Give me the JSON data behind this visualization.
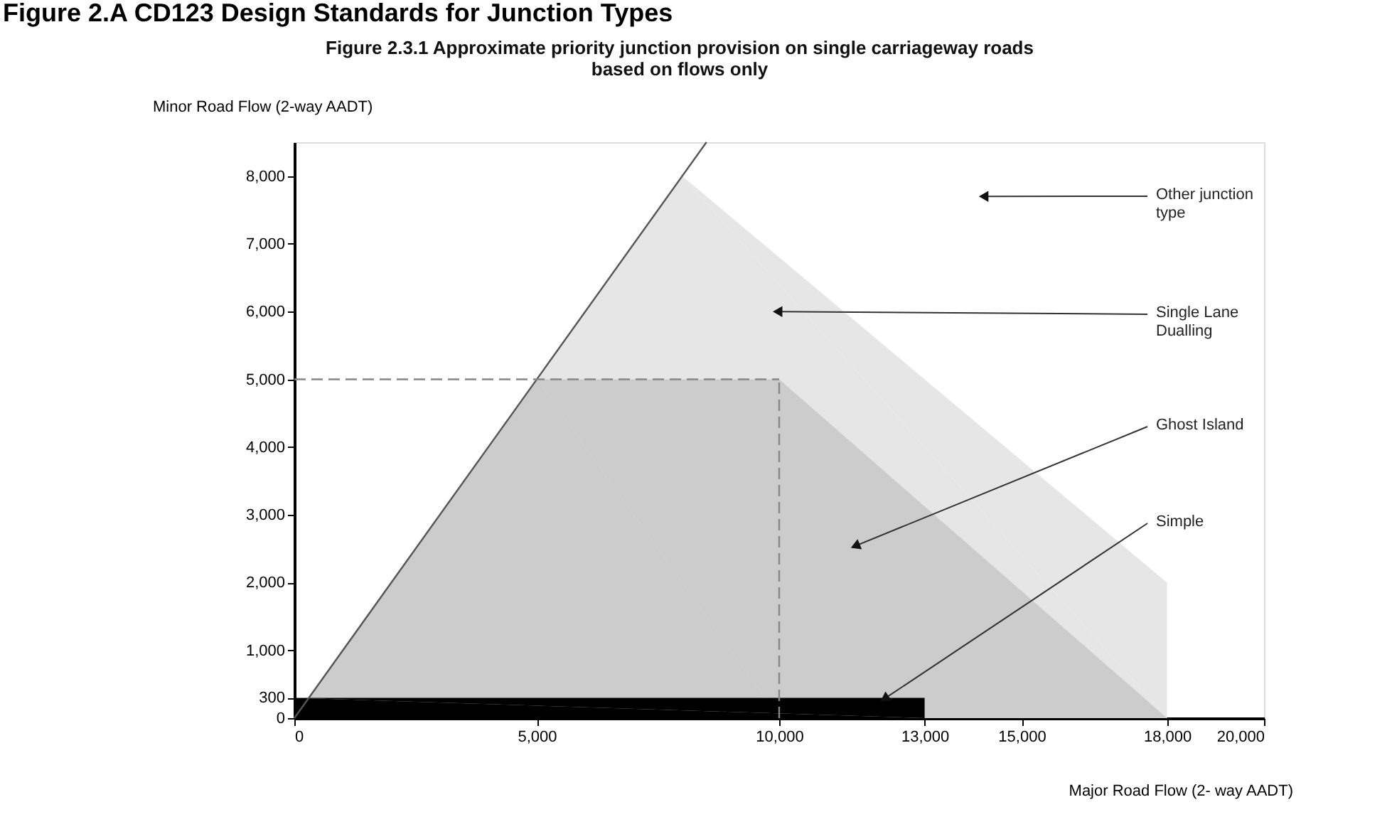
{
  "chart_data": {
    "type": "area",
    "title": "Figure 2.A    CD123 Design Standards for Junction Types",
    "subtitle": "Figure 2.3.1 Approximate priority junction provision on single carriageway roads\nbased on flows only",
    "xlabel": "Major Road Flow (2- way AADT)",
    "ylabel": "Minor Road Flow (2-way AADT)",
    "series": [
      {
        "color": "#e6e6e6",
        "x": [
          0,
          8000,
          18000,
          18000
        ],
        "values": [
          0,
          8000,
          2000,
          0
        ]
      },
      {
        "color": "#cccccc",
        "x": [
          0,
          5000,
          10000,
          18000
        ],
        "values": [
          0,
          5000,
          5000,
          0
        ]
      },
      {
        "color": "#000000",
        "x": [
          0,
          13000
        ],
        "values": [
          300,
          300
        ]
      },
      {
        "type": "line",
        "color": "#555555",
        "x": [
          0,
          8500
        ],
        "values": [
          0,
          8500
        ]
      },
      {
        "type": "line",
        "color": "#888888",
        "line_style": "dashed",
        "x": [
          0,
          10000
        ],
        "values": [
          5000,
          5000
        ]
      },
      {
        "type": "line",
        "color": "#888888",
        "line_style": "dashed",
        "x": [
          10000,
          10000
        ],
        "values": [
          0,
          5000
        ]
      }
    ],
    "annotations": [
      {
        "text": "Other junction\ntype",
        "x": 14250,
        "y": 7700
      },
      {
        "text": "Single Lane\nDualling",
        "x": 10000,
        "y": 6000
      },
      {
        "text": "Ghost Island",
        "x": 11600,
        "y": 2550
      },
      {
        "text": "Simple",
        "x": 12200,
        "y": 300
      }
    ],
    "xlim": [
      0,
      20000
    ],
    "ylim": [
      0,
      8500
    ],
    "xticks": [
      0,
      {
        "value": 5000,
        "label": "5,000"
      },
      {
        "value": 10000,
        "label": "10,000"
      },
      {
        "value": 13000,
        "label": "13,000"
      },
      {
        "value": 15000,
        "label": "15,000"
      },
      {
        "value": 18000,
        "label": "18,000"
      },
      {
        "value": 20000,
        "label": "20,000"
      }
    ],
    "yticks": [
      0,
      300,
      {
        "value": 1000,
        "label": "1,000"
      },
      {
        "value": 2000,
        "label": "2,000"
      },
      {
        "value": 3000,
        "label": "3,000"
      },
      {
        "value": 4000,
        "label": "4,000"
      },
      {
        "value": 5000,
        "label": "5,000"
      },
      {
        "value": 6000,
        "label": "6,000"
      },
      {
        "value": 7000,
        "label": "7,000"
      },
      {
        "value": 8000,
        "label": "8,000"
      }
    ],
    "grid": false
  }
}
